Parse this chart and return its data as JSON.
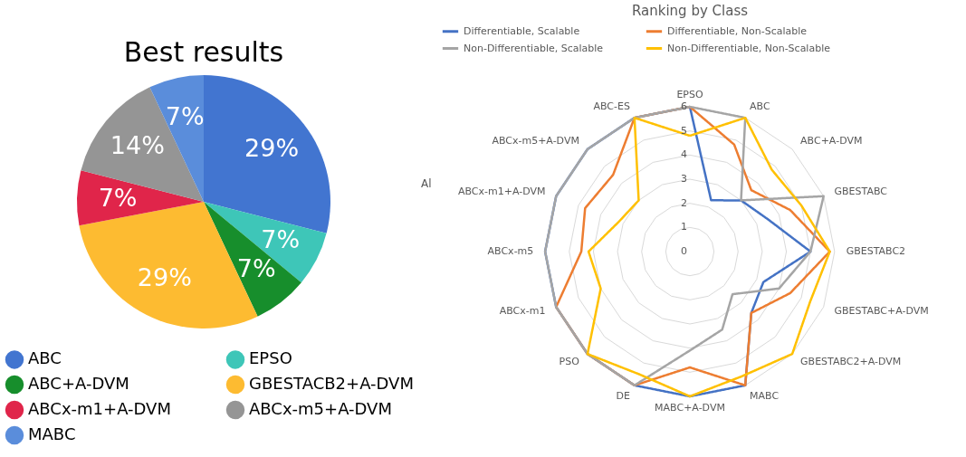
{
  "chart_data": [
    {
      "type": "pie",
      "title": "Best results",
      "categories": [
        "ABC",
        "EPSO",
        "ABC+A-DVM",
        "GBESTACB2+A-DVM",
        "ABCx-m1+A-DVM",
        "ABCx-m5+A-DVM",
        "MABC"
      ],
      "values": [
        29,
        7,
        7,
        29,
        7,
        14,
        7
      ],
      "value_labels": [
        "29%",
        "7%",
        "7%",
        "29%",
        "7%",
        "14%",
        "7%"
      ],
      "colors": [
        "#4275d0",
        "#3ec6b8",
        "#178e2c",
        "#fdbb31",
        "#e0254a",
        "#959595",
        "#5a8ddb"
      ],
      "legend": "bottom",
      "annotations": [
        "Al"
      ]
    },
    {
      "type": "radar",
      "title": "Ranking by Class",
      "categories": [
        "EPSO",
        "ABC",
        "ABC+A-DVM",
        "GBESTABC",
        "GBESTABC2",
        "GBESTABC+A-DVM",
        "GBESTABC2+A-DVM",
        "MABC",
        "MABC+A-DVM",
        "DE",
        "PSO",
        "ABCx-m1",
        "ABCx-m5",
        "ABCx-m1+A-DVM",
        "ABCx-m5+A-DVM",
        "ABC-ES"
      ],
      "series": [
        {
          "name": "Differentiable, Scalable",
          "color": "#4472c4",
          "values": [
            6,
            2.3,
            3,
            3.5,
            5,
            3.3,
            3.6,
            6,
            6,
            6,
            6,
            6,
            6,
            6,
            6,
            6
          ]
        },
        {
          "name": "Differentiable, Non-Scalable",
          "color": "#ed7d31",
          "values": [
            6,
            4.8,
            3.6,
            4.5,
            5.8,
            4.5,
            3.6,
            6,
            4.8,
            6,
            6,
            6,
            4.5,
            4.7,
            4.5,
            6
          ]
        },
        {
          "name": "Non-Differentiable, Scalable",
          "color": "#a5a5a5",
          "values": [
            6,
            6,
            3,
            6,
            5,
            4,
            2.5,
            3.5,
            4.1,
            6,
            6,
            6,
            6,
            6,
            6,
            6
          ]
        },
        {
          "name": "Non-Differentiable, Non-Scalable",
          "color": "#ffc000",
          "values": [
            4.8,
            6,
            4.8,
            5,
            5.8,
            5.4,
            6,
            5.6,
            6,
            5.5,
            6,
            4,
            4.2,
            3.2,
            3,
            6
          ]
        }
      ],
      "ylim": [
        0,
        6
      ],
      "yticks": [
        0,
        1,
        2,
        3,
        4,
        5,
        6
      ],
      "grid": true,
      "legend": "top"
    }
  ]
}
